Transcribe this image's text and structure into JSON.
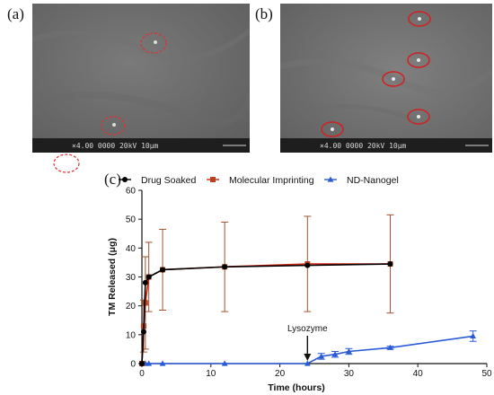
{
  "figure": {
    "panel_a_label": "(a)",
    "panel_b_label": "(b)",
    "panel_c_label": "(c)"
  },
  "sem_a": {
    "scale_text": "×4.00  0000  20kV  10μm"
  },
  "sem_b": {
    "scale_text": "×4.00  0000  20kV  10μm"
  },
  "colors": {
    "drug_soaked": "#000000",
    "molecular_imprinting": "#b5421a",
    "nd_nanogel": "#2a5bd7",
    "error_bar": "#a0522d",
    "circle_marker": "#e03030"
  },
  "chart_data": {
    "type": "line",
    "xlabel": "Time (hours)",
    "ylabel": "TM Released (μg)",
    "xlim": [
      0,
      50
    ],
    "ylim": [
      0,
      60
    ],
    "xticks": [
      0,
      10,
      20,
      30,
      40,
      50
    ],
    "yticks": [
      0,
      10,
      20,
      30,
      40,
      50,
      60
    ],
    "legend_position": "top",
    "series": [
      {
        "name": "Drug Soaked",
        "marker": "circle",
        "x": [
          0,
          0.25,
          0.5,
          1,
          3,
          12,
          24,
          36
        ],
        "y": [
          0,
          11,
          28,
          30,
          32.5,
          33.5,
          34,
          34.5
        ],
        "err": [
          0,
          0,
          0,
          0,
          0,
          0,
          0,
          0
        ]
      },
      {
        "name": "Molecular Imprinting",
        "marker": "square",
        "x": [
          0,
          0.25,
          0.5,
          1,
          3,
          12,
          24,
          36
        ],
        "y": [
          0,
          13,
          21,
          30,
          32.5,
          33.5,
          34.5,
          34.5
        ],
        "err": [
          0,
          9,
          16,
          12,
          14,
          15.5,
          16.5,
          17
        ]
      },
      {
        "name": "ND-Nanogel",
        "marker": "triangle",
        "x": [
          0,
          0.5,
          1,
          3,
          12,
          24,
          26,
          28,
          30,
          36,
          48
        ],
        "y": [
          0,
          0,
          0,
          0,
          0,
          0,
          2.5,
          3.2,
          4.2,
          5.5,
          9.5
        ],
        "err": [
          0,
          0,
          0,
          0,
          0,
          0,
          1,
          1,
          1,
          0.5,
          1.8
        ]
      }
    ],
    "annotation": {
      "text": "Lysozyme",
      "x": 24,
      "y": 0
    }
  }
}
